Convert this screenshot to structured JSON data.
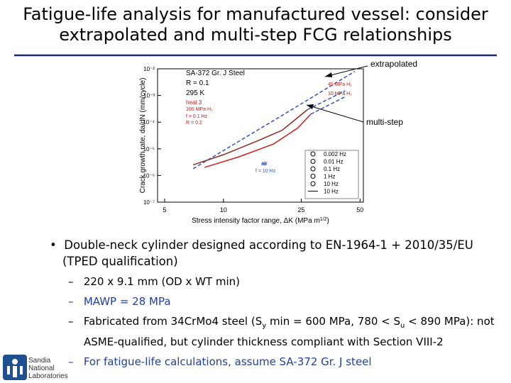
{
  "slide": {
    "title_lines": [
      "Fatigue-life analysis for manufactured vessel: consider",
      "extrapolated and multi-step FCG relationships"
    ],
    "callouts": [
      "extrapolated",
      "multi-step"
    ],
    "bullet": "Double-neck cylinder designed according to EN-1964-1 + 2010/35/EU (TPED qualification)",
    "sub_bullets": [
      [
        "220 x 9.1 mm (OD x WT min)"
      ],
      [
        "MAWP = 28 MPa"
      ],
      [
        "Fabricated from 34CrMo4 steel (S",
        "y",
        " min = 600 MPa, 780 < S",
        "u",
        " < 890 MPa): not ASME-qualified, but cylinder thickness compliant with Section VIII-2"
      ],
      [
        "For fatigue-life calculations, assume SA-372 Gr. J steel"
      ]
    ],
    "logo": [
      "Sandia",
      "National",
      "Laboratories"
    ]
  },
  "chart_data": {
    "type": "line",
    "x_label": [
      "Stress intensity factor range, ΔK  (MPa m",
      "1/2",
      ")"
    ],
    "y_label": "Crack growth rate, da/dN  (mm/cycle)",
    "log_x": true,
    "log_y": true,
    "xlim": [
      4.6,
      52
    ],
    "ylim": [
      1e-07,
      0.01
    ],
    "xticks": [
      5,
      10,
      25,
      50
    ],
    "yticks": [
      {
        "value": 1e-07,
        "label": "10⁻⁷"
      },
      {
        "value": 1e-06,
        "label": "10⁻⁶"
      },
      {
        "value": 1e-05,
        "label": "10⁻⁵"
      },
      {
        "value": 0.0001,
        "label": "10⁻⁴"
      },
      {
        "value": 0.001,
        "label": "10⁻³"
      },
      {
        "value": 0.01,
        "label": "10⁻²"
      }
    ],
    "annotations": [
      "SA-372 Gr. J Steel",
      "R = 0.1",
      "295 K",
      "heat 3",
      "100 MPa H₂",
      "f = 0.1 Hz",
      "R = 0.2",
      "air",
      "f = 10 Hz"
    ],
    "series": [
      {
        "name": "air",
        "color": "#3050c8",
        "dashed": true,
        "x": [
          7,
          20,
          47
        ],
        "values": [
          1.8e-06,
          0.00018,
          0.008
        ]
      },
      {
        "name": "45 MPa H₂",
        "color": "#d02020",
        "x": [
          8,
          12,
          18,
          24,
          28
        ],
        "values": [
          2e-06,
          5e-06,
          1.5e-05,
          6e-05,
          0.0002
        ]
      },
      {
        "name": "10 MPa H₂",
        "color": "#8b2a20",
        "x": [
          7,
          10,
          15,
          20,
          27
        ],
        "values": [
          2.5e-06,
          6e-06,
          2e-05,
          5e-05,
          0.0003
        ]
      },
      {
        "color": "#3050c8",
        "dashed": true,
        "x": [
          28,
          42
        ],
        "values": [
          0.0002,
          0.0009
        ]
      },
      {
        "color": "#3050c8",
        "dashed": true,
        "x": [
          27,
          42
        ],
        "values": [
          0.0003,
          0.0015
        ]
      }
    ],
    "marker_legend": [
      "0.002 Hz",
      "0.01 Hz",
      "0.1 Hz",
      "1 Hz",
      "10 Hz",
      "10 Hz"
    ]
  }
}
